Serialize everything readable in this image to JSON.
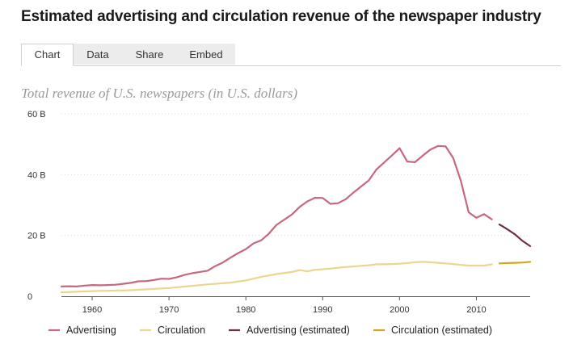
{
  "title": "Estimated advertising and circulation revenue of the newspaper industry",
  "tabs": [
    {
      "label": "Chart",
      "active": true
    },
    {
      "label": "Data",
      "active": false
    },
    {
      "label": "Share",
      "active": false
    },
    {
      "label": "Embed",
      "active": false
    }
  ],
  "chart_data": {
    "type": "line",
    "title": "Total revenue of U.S. newspapers (in U.S. dollars)",
    "xlabel": "",
    "ylabel": "",
    "xlim": [
      1956,
      2017
    ],
    "ylim": [
      0,
      60
    ],
    "x_ticks": [
      1960,
      1970,
      1980,
      1990,
      2000,
      2010
    ],
    "y_ticks": [
      {
        "value": 0,
        "label": "0"
      },
      {
        "value": 20,
        "label": "20 B"
      },
      {
        "value": 40,
        "label": "40 B"
      },
      {
        "value": 60,
        "label": "60 B"
      }
    ],
    "grid": true,
    "legend_position": "bottom",
    "series": [
      {
        "name": "Advertising",
        "color": "#c8677e",
        "dashed": false,
        "x": [
          1956,
          1957,
          1958,
          1959,
          1960,
          1961,
          1962,
          1963,
          1964,
          1965,
          1966,
          1967,
          1968,
          1969,
          1970,
          1971,
          1972,
          1973,
          1974,
          1975,
          1976,
          1977,
          1978,
          1979,
          1980,
          1981,
          1982,
          1983,
          1984,
          1985,
          1986,
          1987,
          1988,
          1989,
          1990,
          1991,
          1992,
          1993,
          1994,
          1995,
          1996,
          1997,
          1998,
          1999,
          2000,
          2001,
          2002,
          2003,
          2004,
          2005,
          2006,
          2007,
          2008,
          2009,
          2010,
          2011,
          2012
        ],
        "y": [
          3.2,
          3.3,
          3.2,
          3.5,
          3.7,
          3.6,
          3.7,
          3.8,
          4.1,
          4.4,
          4.9,
          5.0,
          5.3,
          5.8,
          5.7,
          6.2,
          7.0,
          7.6,
          8.0,
          8.4,
          9.9,
          11.1,
          12.7,
          14.2,
          15.5,
          17.4,
          18.4,
          20.6,
          23.5,
          25.2,
          26.9,
          29.4,
          31.2,
          32.4,
          32.3,
          30.4,
          30.6,
          31.9,
          34.1,
          36.1,
          38.1,
          41.7,
          44.0,
          46.3,
          48.7,
          44.3,
          44.1,
          46.2,
          48.2,
          49.4,
          49.3,
          45.4,
          37.8,
          27.6,
          25.8,
          27.0,
          25.3
        ]
      },
      {
        "name": "Circulation",
        "color": "#ead68f",
        "dashed": false,
        "x": [
          1956,
          1960,
          1965,
          1970,
          1975,
          1978,
          1980,
          1982,
          1984,
          1986,
          1987,
          1988,
          1989,
          1990,
          1991,
          1992,
          1993,
          1994,
          1995,
          1996,
          1997,
          1998,
          1999,
          2000,
          2001,
          2002,
          2003,
          2004,
          2005,
          2006,
          2007,
          2008,
          2009,
          2010,
          2011,
          2012
        ],
        "y": [
          1.3,
          1.7,
          2.0,
          2.7,
          3.9,
          4.5,
          5.2,
          6.4,
          7.3,
          8.0,
          8.6,
          8.2,
          8.7,
          8.9,
          9.1,
          9.4,
          9.6,
          9.8,
          10.0,
          10.2,
          10.5,
          10.5,
          10.6,
          10.7,
          10.9,
          11.2,
          11.3,
          11.2,
          11.0,
          10.8,
          10.6,
          10.3,
          10.1,
          10.1,
          10.1,
          10.5
        ]
      },
      {
        "name": "Advertising (estimated)",
        "color": "#6e2f44",
        "dashed": true,
        "x": [
          2013,
          2014,
          2015,
          2016,
          2017
        ],
        "y": [
          23.6,
          22.1,
          20.4,
          18.2,
          16.5
        ]
      },
      {
        "name": "Circulation (estimated)",
        "color": "#d2a520",
        "dashed": true,
        "x": [
          2013,
          2014,
          2015,
          2016,
          2017
        ],
        "y": [
          10.8,
          10.9,
          11.0,
          11.1,
          11.3
        ]
      }
    ]
  }
}
